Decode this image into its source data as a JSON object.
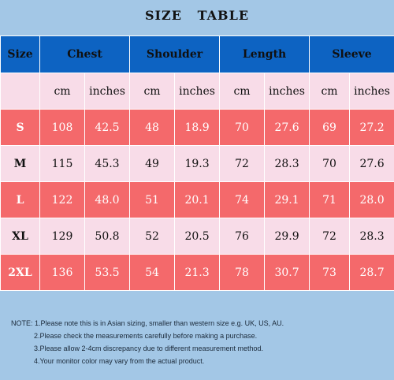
{
  "title": "SIZE   TABLE",
  "header": {
    "size": "Size",
    "groups": [
      "Chest",
      "Shoulder",
      "Length",
      "Sleeve"
    ]
  },
  "units": [
    "cm",
    "inches",
    "cm",
    "inches",
    "cm",
    "inches",
    "cm",
    "inches"
  ],
  "rows": [
    {
      "size": "S",
      "values": [
        "108",
        "42.5",
        "48",
        "18.9",
        "70",
        "27.6",
        "69",
        "27.2"
      ]
    },
    {
      "size": "M",
      "values": [
        "115",
        "45.3",
        "49",
        "19.3",
        "72",
        "28.3",
        "70",
        "27.6"
      ]
    },
    {
      "size": "L",
      "values": [
        "122",
        "48.0",
        "51",
        "20.1",
        "74",
        "29.1",
        "71",
        "28.0"
      ]
    },
    {
      "size": "XL",
      "values": [
        "129",
        "50.8",
        "52",
        "20.5",
        "76",
        "29.9",
        "72",
        "28.3"
      ]
    },
    {
      "size": "2XL",
      "values": [
        "136",
        "53.5",
        "54",
        "21.3",
        "78",
        "30.7",
        "73",
        "28.7"
      ]
    }
  ],
  "notes": {
    "prefix": "NOTE: ",
    "lines": [
      "1.Please note this is in Asian sizing, smaller than western size e.g. UK, US, AU.",
      "2.Please check the measurements carefully before making a purchase.",
      "3.Please allow 2-4cm discrepancy due to different measurement method.",
      "4.Your monitor color may vary from the actual product."
    ]
  },
  "colors": {
    "background": "#a3c7e6",
    "header": "#0d63c2",
    "row_red": "#f4696b",
    "row_pink": "#f8dce8"
  }
}
